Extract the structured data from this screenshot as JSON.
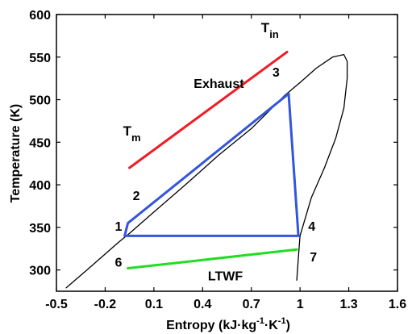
{
  "chart_data": {
    "type": "line",
    "xlabel": "Entropy (kJ·kg-1·K-1)",
    "ylabel": "Temperature (K)",
    "xlim": [
      -0.5,
      1.6
    ],
    "ylim": [
      275,
      600
    ],
    "x_ticks": [
      -0.5,
      -0.2,
      0.1,
      0.4,
      0.7,
      1,
      1.3,
      1.6
    ],
    "x_tick_labels": [
      "-0.5",
      "-0.2",
      "0.1",
      "0.4",
      "0.7",
      "1",
      "1.3",
      "1.6"
    ],
    "y_ticks": [
      300,
      350,
      400,
      450,
      500,
      550,
      600
    ],
    "y_tick_labels": [
      "300",
      "350",
      "400",
      "450",
      "500",
      "550",
      "600"
    ],
    "grid": false,
    "series": [
      {
        "color": "#000000",
        "x": [
          -0.44,
          -0.3,
          -0.12,
          -0.05,
          0.1,
          0.3,
          0.5,
          0.7,
          0.9,
          1.0,
          1.1,
          1.2,
          1.27,
          1.29,
          1.29,
          1.27,
          1.22,
          1.15,
          1.07,
          1.0,
          0.99,
          0.98
        ],
        "y": [
          279,
          302,
          332,
          343,
          368,
          401,
          435,
          466,
          504,
          520,
          537,
          550,
          553,
          545,
          525,
          490,
          455,
          420,
          385,
          340,
          315,
          288
        ]
      },
      {
        "color": "#3355dd",
        "x": [
          -0.08,
          -0.06,
          0.93,
          0.99,
          -0.08
        ],
        "y": [
          340,
          355,
          507,
          340,
          340
        ]
      },
      {
        "name": "Exhaust",
        "color": "#ee1c25",
        "x": [
          -0.05,
          0.92
        ],
        "y": [
          420,
          556
        ]
      },
      {
        "name": "LTWF",
        "color": "#22dd22",
        "x": [
          -0.06,
          0.98
        ],
        "y": [
          302,
          324
        ]
      }
    ],
    "annotations": [
      {
        "text": "1",
        "x": -0.14,
        "y": 346
      },
      {
        "text": "2",
        "x": -0.03,
        "y": 382
      },
      {
        "text": "3",
        "x": 0.83,
        "y": 527
      },
      {
        "text": "4",
        "x": 1.05,
        "y": 346
      },
      {
        "text": "6",
        "x": -0.14,
        "y": 304
      },
      {
        "text": "7",
        "x": 1.06,
        "y": 310
      },
      {
        "text": "Exhaust",
        "x": 0.5,
        "y": 514
      },
      {
        "text": "LTWF",
        "x": 0.54,
        "y": 288
      },
      {
        "text": "T",
        "sub": "in",
        "x": 0.76,
        "y": 579
      },
      {
        "text": "T",
        "sub": "m",
        "x": -0.09,
        "y": 458
      }
    ]
  }
}
